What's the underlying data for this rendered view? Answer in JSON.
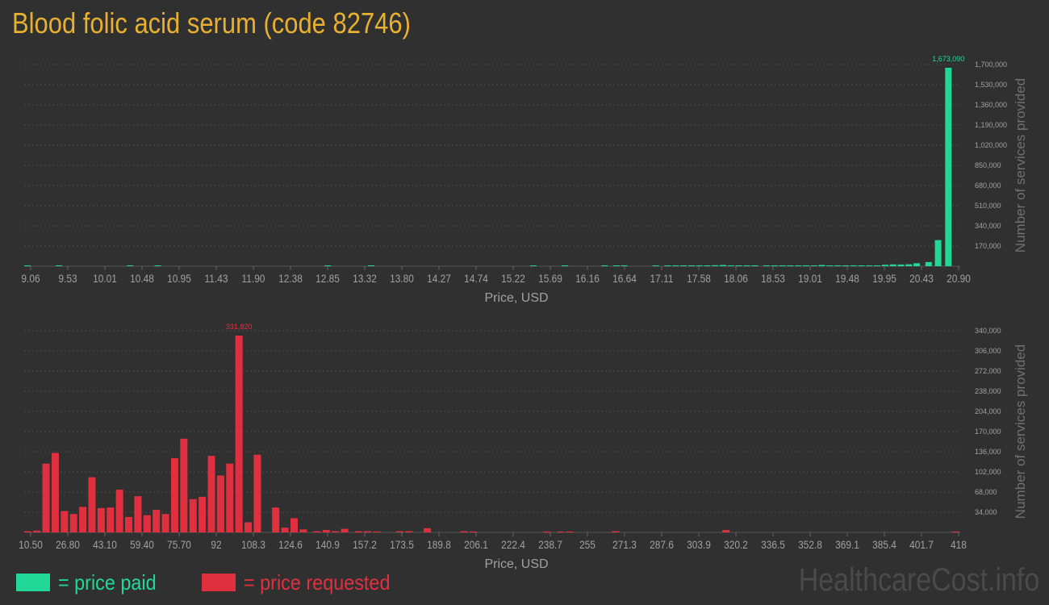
{
  "title": "Blood folic acid serum (code 82746)",
  "legend": {
    "paid_label": "= price paid",
    "requested_label": "= price requested"
  },
  "watermark": "HealthcareCost.info",
  "colors": {
    "background": "#303030",
    "title": "#e8b030",
    "paid": "#22d898",
    "requested": "#e03040",
    "axis_text": "#a0a0a0",
    "grid": "#4a4a4a"
  },
  "chart_data": [
    {
      "type": "bar",
      "series": [
        {
          "name": "price paid",
          "color": "#22d898"
        }
      ],
      "xlabel": "Price, USD",
      "ylabel": "Number of services provided",
      "x_tick_labels": [
        "9.06",
        "9.53",
        "10.01",
        "10.48",
        "10.95",
        "11.43",
        "11.90",
        "12.38",
        "12.85",
        "13.32",
        "13.80",
        "14.27",
        "14.74",
        "15.22",
        "15.69",
        "16.16",
        "16.64",
        "17.11",
        "17.58",
        "18.06",
        "18.53",
        "19.01",
        "19.48",
        "19.95",
        "20.43",
        "20.90"
      ],
      "y_tick_labels": [
        "170,000",
        "340,000",
        "510,000",
        "680,000",
        "850,000",
        "1,020,000",
        "1,190,000",
        "1,360,000",
        "1,530,000",
        "1,700,000"
      ],
      "ylim": [
        0,
        1700000
      ],
      "xlim": [
        9.06,
        20.9
      ],
      "grid": true,
      "peak_label": "1,673,090",
      "bars": [
        {
          "x": 9.1,
          "y": 3000
        },
        {
          "x": 9.5,
          "y": 4000
        },
        {
          "x": 10.4,
          "y": 3000
        },
        {
          "x": 10.75,
          "y": 5000
        },
        {
          "x": 12.9,
          "y": 3000
        },
        {
          "x": 13.45,
          "y": 3000
        },
        {
          "x": 15.5,
          "y": 4000
        },
        {
          "x": 15.9,
          "y": 3000
        },
        {
          "x": 16.4,
          "y": 5000
        },
        {
          "x": 16.55,
          "y": 5000
        },
        {
          "x": 16.65,
          "y": 4000
        },
        {
          "x": 17.05,
          "y": 4000
        },
        {
          "x": 17.2,
          "y": 5000
        },
        {
          "x": 17.3,
          "y": 4000
        },
        {
          "x": 17.4,
          "y": 4000
        },
        {
          "x": 17.5,
          "y": 4000
        },
        {
          "x": 17.6,
          "y": 4000
        },
        {
          "x": 17.7,
          "y": 4000
        },
        {
          "x": 17.8,
          "y": 8000
        },
        {
          "x": 17.9,
          "y": 10000
        },
        {
          "x": 18.0,
          "y": 5000
        },
        {
          "x": 18.1,
          "y": 3000
        },
        {
          "x": 18.2,
          "y": 4000
        },
        {
          "x": 18.3,
          "y": 5000
        },
        {
          "x": 18.45,
          "y": 4000
        },
        {
          "x": 18.55,
          "y": 3000
        },
        {
          "x": 18.65,
          "y": 4000
        },
        {
          "x": 18.75,
          "y": 4000
        },
        {
          "x": 18.85,
          "y": 3000
        },
        {
          "x": 18.95,
          "y": 4000
        },
        {
          "x": 19.05,
          "y": 5000
        },
        {
          "x": 19.15,
          "y": 10000
        },
        {
          "x": 19.25,
          "y": 4000
        },
        {
          "x": 19.35,
          "y": 5000
        },
        {
          "x": 19.45,
          "y": 4000
        },
        {
          "x": 19.55,
          "y": 4000
        },
        {
          "x": 19.65,
          "y": 4000
        },
        {
          "x": 19.75,
          "y": 4000
        },
        {
          "x": 19.85,
          "y": 5000
        },
        {
          "x": 19.95,
          "y": 12000
        },
        {
          "x": 20.05,
          "y": 15000
        },
        {
          "x": 20.15,
          "y": 14000
        },
        {
          "x": 20.25,
          "y": 16000
        },
        {
          "x": 20.35,
          "y": 25000
        },
        {
          "x": 20.5,
          "y": 35000
        },
        {
          "x": 20.62,
          "y": 220000
        },
        {
          "x": 20.75,
          "y": 1673090
        }
      ]
    },
    {
      "type": "bar",
      "series": [
        {
          "name": "price requested",
          "color": "#e03040"
        }
      ],
      "xlabel": "Price, USD",
      "ylabel": "Number of services provided",
      "x_tick_labels": [
        "10.50",
        "26.80",
        "43.10",
        "59.40",
        "75.70",
        "92",
        "108.3",
        "124.6",
        "140.9",
        "157.2",
        "173.5",
        "189.8",
        "206.1",
        "222.4",
        "238.7",
        "255",
        "271.3",
        "287.6",
        "303.9",
        "320.2",
        "336.5",
        "352.8",
        "369.1",
        "385.4",
        "401.7",
        "418"
      ],
      "y_tick_labels": [
        "34,000",
        "68,000",
        "102,000",
        "136,000",
        "170,000",
        "204,000",
        "238,000",
        "272,000",
        "306,000",
        "340,000"
      ],
      "ylim": [
        0,
        340000
      ],
      "xlim": [
        10.5,
        418
      ],
      "grid": true,
      "peak_label": "331,820",
      "bars": [
        {
          "x": 12,
          "y": 2000
        },
        {
          "x": 16,
          "y": 3000
        },
        {
          "x": 20,
          "y": 116000
        },
        {
          "x": 24,
          "y": 134000
        },
        {
          "x": 28,
          "y": 36000
        },
        {
          "x": 32,
          "y": 31000
        },
        {
          "x": 36,
          "y": 43000
        },
        {
          "x": 40,
          "y": 93000
        },
        {
          "x": 44,
          "y": 41000
        },
        {
          "x": 48,
          "y": 42000
        },
        {
          "x": 52,
          "y": 72000
        },
        {
          "x": 56,
          "y": 26000
        },
        {
          "x": 60,
          "y": 61000
        },
        {
          "x": 64,
          "y": 29000
        },
        {
          "x": 68,
          "y": 38000
        },
        {
          "x": 72,
          "y": 31000
        },
        {
          "x": 76,
          "y": 125000
        },
        {
          "x": 80,
          "y": 158000
        },
        {
          "x": 84,
          "y": 56000
        },
        {
          "x": 88,
          "y": 60000
        },
        {
          "x": 92,
          "y": 129000
        },
        {
          "x": 96,
          "y": 96000
        },
        {
          "x": 100,
          "y": 116000
        },
        {
          "x": 104,
          "y": 331820
        },
        {
          "x": 108,
          "y": 17000
        },
        {
          "x": 112,
          "y": 131000
        },
        {
          "x": 120,
          "y": 42000
        },
        {
          "x": 124,
          "y": 8000
        },
        {
          "x": 128,
          "y": 24000
        },
        {
          "x": 132,
          "y": 5000
        },
        {
          "x": 138,
          "y": 2000
        },
        {
          "x": 142,
          "y": 4000
        },
        {
          "x": 146,
          "y": 2000
        },
        {
          "x": 150,
          "y": 6000
        },
        {
          "x": 156,
          "y": 2000
        },
        {
          "x": 160,
          "y": 2000
        },
        {
          "x": 164,
          "y": 1500
        },
        {
          "x": 174,
          "y": 2000
        },
        {
          "x": 178,
          "y": 2000
        },
        {
          "x": 186,
          "y": 7000
        },
        {
          "x": 202,
          "y": 2000
        },
        {
          "x": 206,
          "y": 1500
        },
        {
          "x": 238,
          "y": 1500
        },
        {
          "x": 244,
          "y": 1500
        },
        {
          "x": 248,
          "y": 1500
        },
        {
          "x": 268,
          "y": 2000
        },
        {
          "x": 316,
          "y": 4000
        },
        {
          "x": 416,
          "y": 1500
        }
      ]
    }
  ]
}
